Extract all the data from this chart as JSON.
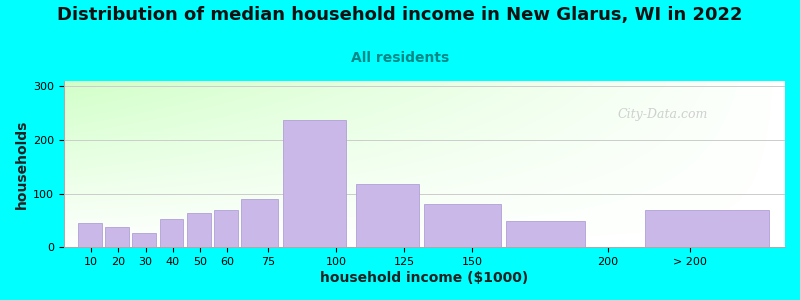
{
  "title": "Distribution of median household income in New Glarus, WI in 2022",
  "subtitle": "All residents",
  "xlabel": "household income ($1000)",
  "ylabel": "households",
  "bar_labels": [
    "10",
    "20",
    "30",
    "40",
    "50",
    "60",
    "75",
    "100",
    "125",
    "150",
    "200",
    "> 200"
  ],
  "bar_values": [
    45,
    38,
    26,
    53,
    63,
    70,
    90,
    238,
    118,
    80,
    48,
    70
  ],
  "bar_color": "#c9b8e8",
  "bar_edgecolor": "#b0a0d8",
  "background_color": "#00FFFF",
  "ylim": [
    0,
    310
  ],
  "yticks": [
    0,
    100,
    200,
    300
  ],
  "title_fontsize": 13,
  "subtitle_fontsize": 10,
  "subtitle_color": "#008888",
  "axis_label_fontsize": 10,
  "tick_fontsize": 8,
  "watermark_text": "City-Data.com",
  "watermark_color": "#c8c8c8",
  "tick_positions": [
    10,
    20,
    30,
    40,
    50,
    60,
    75,
    100,
    125,
    150,
    200,
    230
  ],
  "left_edges": [
    5,
    15,
    25,
    35,
    45,
    55,
    65,
    80,
    107,
    132,
    162,
    213
  ],
  "bar_widths": [
    9,
    9,
    9,
    9,
    9,
    9,
    14,
    24,
    24,
    29,
    30,
    47
  ]
}
